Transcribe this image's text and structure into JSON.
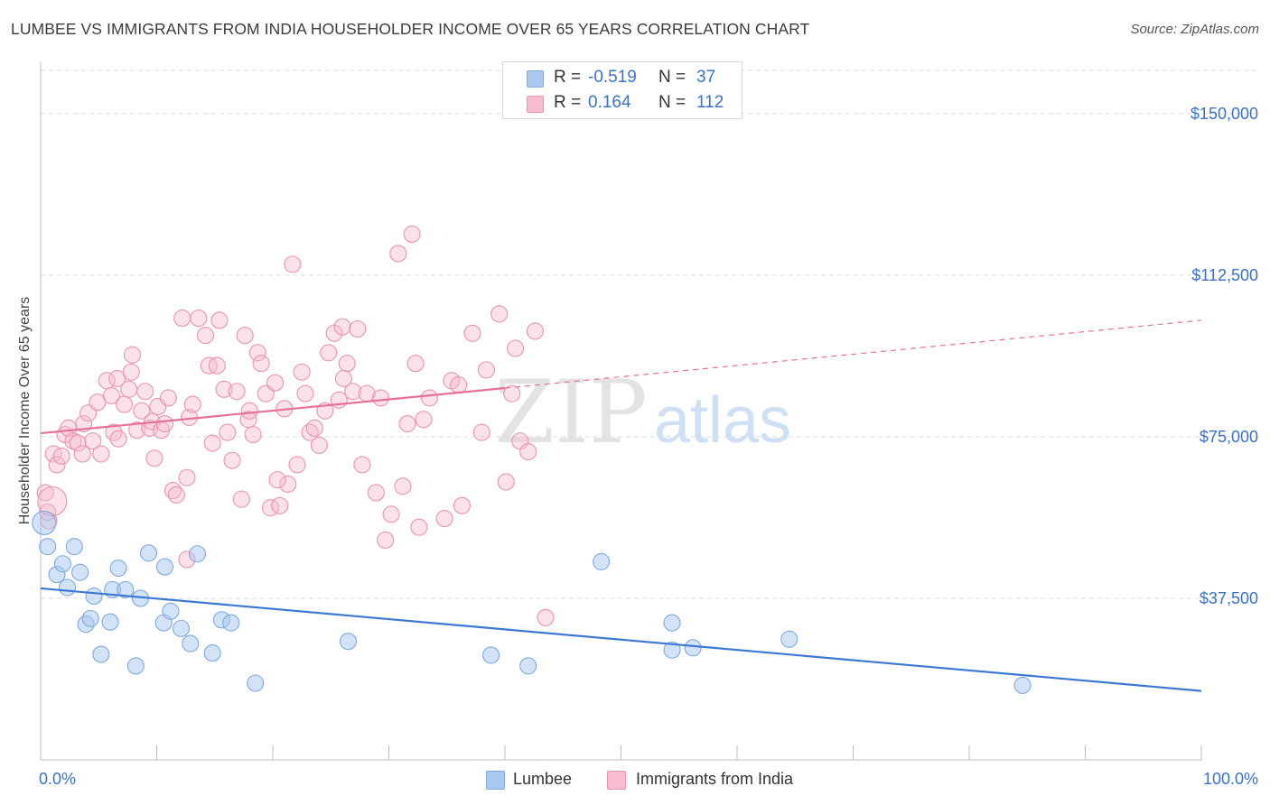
{
  "header": {
    "title": "LUMBEE VS IMMIGRANTS FROM INDIA HOUSEHOLDER INCOME OVER 65 YEARS CORRELATION CHART",
    "source": "Source: ZipAtlas.com"
  },
  "watermark": {
    "zip": "ZIP",
    "atlas": "atlas"
  },
  "legend": {
    "rows": [
      {
        "r_label": "R =",
        "r_value": "-0.519",
        "n_label": "N =",
        "n_value": "37",
        "color": "#a8c8f0",
        "border": "#7fa9df"
      },
      {
        "r_label": "R =",
        "r_value": "0.164",
        "n_label": "N =",
        "n_value": "112",
        "color": "#f7bcd0",
        "border": "#e993b0"
      }
    ]
  },
  "bottom_legend": {
    "items": [
      {
        "label": "Lumbee",
        "color": "#a8c8f0",
        "border": "#7fa9df"
      },
      {
        "label": "Immigrants from India",
        "color": "#f7bcd0",
        "border": "#e993b0"
      }
    ]
  },
  "chart_data": {
    "type": "scatter",
    "title": "LUMBEE VS IMMIGRANTS FROM INDIA HOUSEHOLDER INCOME OVER 65 YEARS CORRELATION CHART",
    "xlabel": "",
    "ylabel": "Householder Income Over 65 years",
    "xlim": [
      0,
      100
    ],
    "ylim": [
      0,
      160000
    ],
    "x_tick_labels": [
      "0.0%",
      "100.0%"
    ],
    "y_ticks": [
      37500,
      75000,
      112500,
      150000
    ],
    "y_tick_labels": [
      "$37,500",
      "$75,000",
      "$112,500",
      "$150,000"
    ],
    "grid": "horizontal dashed",
    "colors": {
      "lumbee": "#3b78d4",
      "india": "#e8709a",
      "axis_text": "#3b72c8"
    },
    "series": [
      {
        "name": "Lumbee",
        "trend": {
          "x": [
            0,
            100
          ],
          "y": [
            39800,
            16000
          ],
          "dashed_from": null
        },
        "points": [
          [
            0.6,
            49500
          ],
          [
            1.4,
            43000
          ],
          [
            1.9,
            45500
          ],
          [
            2.3,
            40000
          ],
          [
            2.9,
            49500
          ],
          [
            3.4,
            43500
          ],
          [
            3.9,
            31500
          ],
          [
            4.3,
            32800
          ],
          [
            4.6,
            38000
          ],
          [
            5.2,
            24500
          ],
          [
            6.0,
            32000
          ],
          [
            6.2,
            39500
          ],
          [
            6.7,
            44500
          ],
          [
            7.3,
            39500
          ],
          [
            8.2,
            21800
          ],
          [
            8.6,
            37500
          ],
          [
            9.3,
            48000
          ],
          [
            10.6,
            31800
          ],
          [
            10.7,
            44800
          ],
          [
            11.2,
            34500
          ],
          [
            12.1,
            30500
          ],
          [
            12.9,
            27000
          ],
          [
            13.5,
            47800
          ],
          [
            14.8,
            24800
          ],
          [
            15.6,
            32500
          ],
          [
            16.4,
            31800
          ],
          [
            18.5,
            17800
          ],
          [
            26.5,
            27500
          ],
          [
            38.8,
            24300
          ],
          [
            42.0,
            21800
          ],
          [
            48.3,
            46000
          ],
          [
            54.4,
            31800
          ],
          [
            54.4,
            25500
          ],
          [
            56.2,
            26000
          ],
          [
            64.5,
            28000
          ],
          [
            84.6,
            17300
          ],
          [
            0.3,
            55000
          ]
        ]
      },
      {
        "name": "Immigrants from India",
        "trend": {
          "x": [
            0,
            100
          ],
          "y": [
            75800,
            102000
          ],
          "dashed_from": 40
        },
        "points": [
          [
            0.4,
            62000
          ],
          [
            0.6,
            57500
          ],
          [
            0.7,
            55500
          ],
          [
            1.1,
            71000
          ],
          [
            1.4,
            68500
          ],
          [
            1.8,
            70500
          ],
          [
            2.1,
            75500
          ],
          [
            2.4,
            77000
          ],
          [
            2.8,
            74000
          ],
          [
            3.2,
            73500
          ],
          [
            3.6,
            71000
          ],
          [
            3.7,
            78000
          ],
          [
            4.1,
            80500
          ],
          [
            4.5,
            74000
          ],
          [
            4.9,
            83000
          ],
          [
            5.2,
            71000
          ],
          [
            5.7,
            88000
          ],
          [
            6.1,
            84500
          ],
          [
            6.3,
            76000
          ],
          [
            6.6,
            88500
          ],
          [
            6.7,
            74500
          ],
          [
            7.2,
            82500
          ],
          [
            7.6,
            86000
          ],
          [
            7.8,
            90000
          ],
          [
            8.3,
            76500
          ],
          [
            8.7,
            81000
          ],
          [
            9.0,
            85500
          ],
          [
            9.4,
            77000
          ],
          [
            9.6,
            78500
          ],
          [
            10.1,
            82000
          ],
          [
            10.4,
            76500
          ],
          [
            10.7,
            78000
          ],
          [
            11.0,
            84000
          ],
          [
            11.4,
            62500
          ],
          [
            11.7,
            61500
          ],
          [
            12.2,
            102500
          ],
          [
            12.6,
            65500
          ],
          [
            12.8,
            79500
          ],
          [
            13.1,
            82500
          ],
          [
            13.6,
            102500
          ],
          [
            14.2,
            98500
          ],
          [
            14.5,
            91500
          ],
          [
            14.8,
            73500
          ],
          [
            15.4,
            102000
          ],
          [
            15.8,
            86000
          ],
          [
            16.1,
            76000
          ],
          [
            16.5,
            69500
          ],
          [
            16.9,
            85500
          ],
          [
            17.3,
            60500
          ],
          [
            17.6,
            98500
          ],
          [
            17.9,
            79000
          ],
          [
            18.3,
            75500
          ],
          [
            18.7,
            94500
          ],
          [
            19.0,
            92000
          ],
          [
            19.4,
            85000
          ],
          [
            19.8,
            58500
          ],
          [
            20.2,
            87500
          ],
          [
            20.6,
            59000
          ],
          [
            21.0,
            81500
          ],
          [
            21.3,
            64000
          ],
          [
            21.7,
            115000
          ],
          [
            22.1,
            68500
          ],
          [
            22.5,
            90000
          ],
          [
            22.8,
            85000
          ],
          [
            23.2,
            76000
          ],
          [
            23.6,
            77000
          ],
          [
            24.0,
            73000
          ],
          [
            24.5,
            81000
          ],
          [
            24.8,
            94500
          ],
          [
            25.3,
            99000
          ],
          [
            25.7,
            83500
          ],
          [
            26.0,
            100500
          ],
          [
            26.4,
            92000
          ],
          [
            26.9,
            85500
          ],
          [
            27.3,
            100000
          ],
          [
            27.7,
            68500
          ],
          [
            28.1,
            85000
          ],
          [
            29.3,
            84000
          ],
          [
            29.7,
            51000
          ],
          [
            30.2,
            57000
          ],
          [
            30.8,
            117500
          ],
          [
            31.2,
            63500
          ],
          [
            31.6,
            78000
          ],
          [
            32.0,
            122000
          ],
          [
            32.3,
            92000
          ],
          [
            32.6,
            54000
          ],
          [
            33.5,
            84000
          ],
          [
            34.8,
            56000
          ],
          [
            35.4,
            88000
          ],
          [
            36.3,
            59000
          ],
          [
            37.2,
            99000
          ],
          [
            38.4,
            90500
          ],
          [
            39.5,
            103500
          ],
          [
            40.1,
            64500
          ],
          [
            40.6,
            85000
          ],
          [
            40.9,
            95500
          ],
          [
            41.3,
            74000
          ],
          [
            42.6,
            99500
          ],
          [
            43.5,
            33000
          ],
          [
            12.6,
            46500
          ],
          [
            7.9,
            94000
          ],
          [
            9.8,
            70000
          ],
          [
            15.2,
            91500
          ],
          [
            18.0,
            81000
          ],
          [
            20.4,
            65000
          ],
          [
            26.1,
            88500
          ],
          [
            28.9,
            62000
          ],
          [
            33.0,
            79000
          ],
          [
            36.0,
            87000
          ],
          [
            38.0,
            76000
          ],
          [
            42.0,
            71500
          ],
          [
            1.0,
            60000
          ]
        ]
      }
    ]
  }
}
